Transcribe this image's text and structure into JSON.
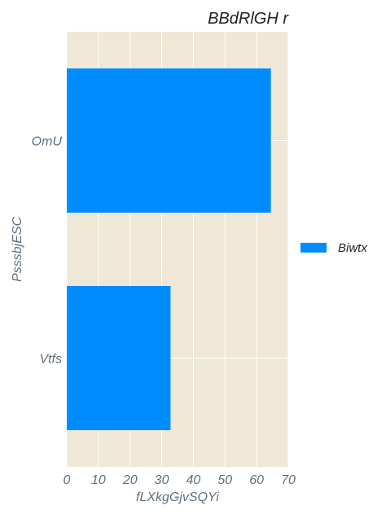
{
  "chart_data": {
    "type": "bar",
    "orientation": "horizontal",
    "title": "BBdRlGH r",
    "xlabel": "fLXkgGjvSQYi",
    "ylabel": "PsssbjESC",
    "categories": [
      "OmU",
      "Vtfs"
    ],
    "series": [
      {
        "name": "Biwtx",
        "values": [
          64.5,
          32.8
        ]
      }
    ],
    "xlim": [
      0,
      70
    ],
    "xticks": [
      "0",
      "10",
      "20",
      "30",
      "40",
      "50",
      "60",
      "70"
    ],
    "grid": true,
    "legend": "right",
    "colors": {
      "bar": "#008cff",
      "plot_bg": "#efe8d6",
      "grid": "#ffffff",
      "tick_text": "#5f6f7f",
      "title_text": "#222222"
    }
  }
}
